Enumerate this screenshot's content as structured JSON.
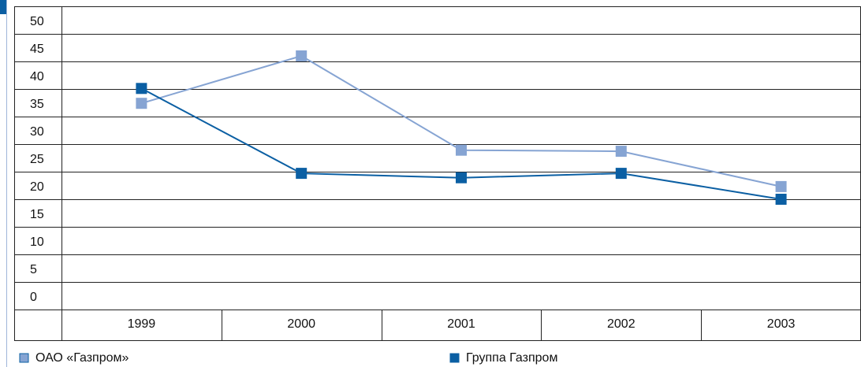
{
  "chart_data": {
    "type": "line",
    "categories": [
      "1999",
      "2000",
      "2001",
      "2002",
      "2003"
    ],
    "series": [
      {
        "name": "ОАО «Газпром»",
        "color": "#86a4d3",
        "values": [
          37.4,
          46,
          28.9,
          28.7,
          22.3
        ]
      },
      {
        "name": "Группа Газпром",
        "color": "#0b5fa3",
        "values": [
          40.1,
          24.7,
          23.9,
          24.7,
          20
        ]
      }
    ],
    "ylim": [
      0,
      55
    ],
    "yticks": [
      0,
      5,
      10,
      15,
      20,
      25,
      30,
      35,
      40,
      45,
      50
    ],
    "grid": true
  }
}
